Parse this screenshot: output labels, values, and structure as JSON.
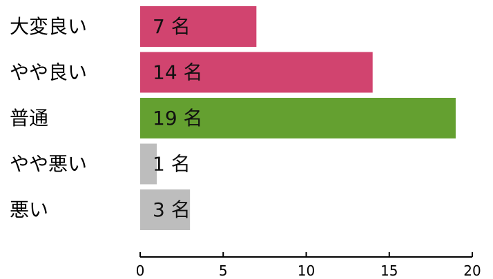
{
  "chart_data": {
    "type": "bar",
    "orientation": "horizontal",
    "title": "",
    "xlabel": "",
    "ylabel": "",
    "categories": [
      "大変良い",
      "やや良い",
      "普通",
      "やや悪い",
      "悪い"
    ],
    "values": [
      7,
      14,
      19,
      1,
      3
    ],
    "value_labels": [
      "7 名",
      "14 名",
      "19 名",
      "1 名",
      "3 名"
    ],
    "bar_colors": [
      "#d1446f",
      "#d1446f",
      "#64a030",
      "#bdbdbd",
      "#bdbdbd"
    ],
    "xlim": [
      0,
      20
    ],
    "xticks": [
      0,
      5,
      10,
      15,
      20
    ],
    "grid": false,
    "legend": "none"
  }
}
